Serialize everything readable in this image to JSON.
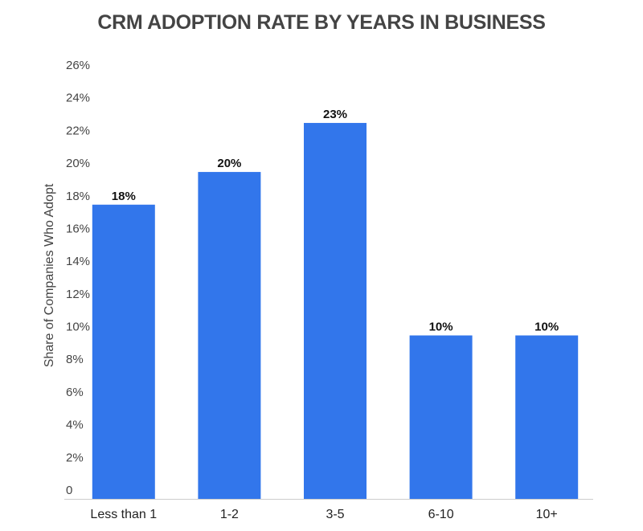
{
  "chart_data": {
    "type": "bar",
    "title": "CRM ADOPTION RATE BY YEARS IN BUSINESS",
    "xlabel": "",
    "ylabel": "Share of Companies Who Adopt",
    "categories": [
      "Less than 1",
      "1-2",
      "3-5",
      "6-10",
      "10+"
    ],
    "values": [
      18,
      20,
      23,
      10,
      10
    ],
    "data_labels": [
      "18%",
      "20%",
      "23%",
      "10%",
      "10%"
    ],
    "ylim": [
      0,
      26
    ],
    "yticks": [
      0,
      2,
      4,
      6,
      8,
      10,
      12,
      14,
      16,
      18,
      20,
      22,
      24,
      26
    ],
    "ytick_labels": [
      "0",
      "2%",
      "4%",
      "6%",
      "8%",
      "10%",
      "12%",
      "14%",
      "16%",
      "18%",
      "20%",
      "22%",
      "24%",
      "26%"
    ],
    "grid": false,
    "legend": "none",
    "bar_color": "#3276eb"
  }
}
